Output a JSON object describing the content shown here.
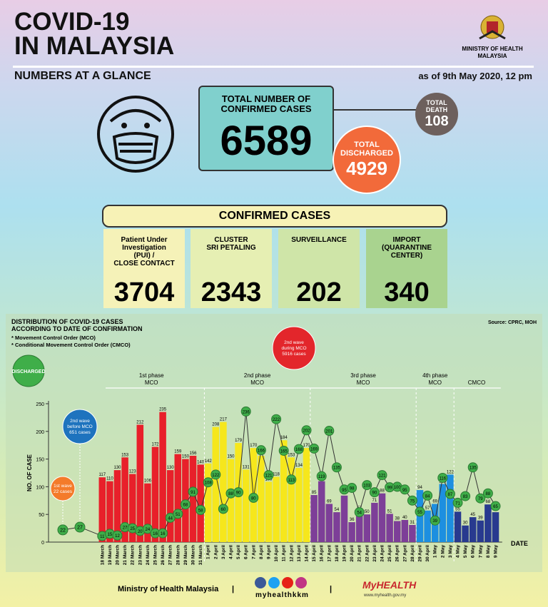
{
  "header": {
    "title": [
      "COVID-19",
      "IN MALAYSIA"
    ],
    "subtitle": "NUMBERS AT A GLANCE",
    "ministry": [
      "MINISTRY OF HEALTH",
      "MALAYSIA"
    ],
    "date": "as of 9th May 2020, 12 pm"
  },
  "totals": {
    "confirmed": {
      "label": [
        "TOTAL NUMBER OF",
        "CONFIRMED CASES"
      ],
      "value": 6589
    },
    "death": {
      "label": [
        "TOTAL",
        "DEATH"
      ],
      "value": 108
    },
    "discharged": {
      "label": [
        "TOTAL",
        "DISCHARGED"
      ],
      "value": 4929
    }
  },
  "breakdown": {
    "title": "CONFIRMED CASES",
    "items": [
      {
        "label": [
          "Patient Under",
          "Investigation",
          "(PUI) /",
          "CLOSE CONTACT"
        ],
        "value": 3704,
        "color": "#f5f2b8"
      },
      {
        "label": [
          "CLUSTER",
          "SRI PETALING"
        ],
        "value": 2343,
        "color": "#e6efb3"
      },
      {
        "label": [
          "SURVEILLANCE"
        ],
        "value": 202,
        "color": "#cfe5a8"
      },
      {
        "label": [
          "IMPORT",
          "(QUARANTINE",
          "CENTER)"
        ],
        "value": 340,
        "color": "#a9d38f"
      }
    ]
  },
  "chart_data": {
    "type": "bar-line",
    "title": [
      "DISTRIBUTION OF COVID-19 CASES",
      "ACCORDING TO DATE OF CONFIRMATION"
    ],
    "notes": [
      "* Movement Control Order (MCO)",
      "* Conditional Movement Control Order (CMCO)"
    ],
    "source": "Source: CPRC, MOH",
    "y_label": "NO. OF CASE",
    "x_label": "DATE",
    "categories": [
      "18 March",
      "19 March",
      "20 March",
      "21 March",
      "22 March",
      "23 March",
      "24 March",
      "25 March",
      "26 March",
      "27 March",
      "28 March",
      "29 March",
      "30 March",
      "31 March",
      "1 April",
      "2 April",
      "3 April",
      "4 April",
      "5 April",
      "6 April",
      "7 April",
      "8 April",
      "9 April",
      "10 April",
      "11 April",
      "12 April",
      "13 April",
      "14 April",
      "15 April",
      "16 April",
      "17 April",
      "18 April",
      "19 April",
      "20 April",
      "21 April",
      "22 April",
      "23 April",
      "24 April",
      "25 April",
      "26 April",
      "27 April",
      "28 April",
      "29 April",
      "30 April",
      "1 May",
      "2 May",
      "3 May",
      "4 May",
      "5 May",
      "6 May",
      "7 May",
      "8 May",
      "9 May"
    ],
    "series": [
      {
        "values": [
          117,
          110,
          130,
          153,
          123,
          212,
          106,
          172,
          235,
          130,
          159,
          150,
          156,
          140,
          142,
          208,
          217,
          150,
          179,
          131,
          170,
          156,
          109,
          118,
          184,
          153,
          134,
          170,
          85,
          110,
          69,
          54,
          84,
          36,
          57,
          50,
          71,
          88,
          51,
          38,
          40,
          31,
          94,
          57,
          69,
          105,
          122,
          55,
          30,
          45,
          39,
          68,
          54
        ]
      },
      {
        "name": "DISCHARGED",
        "color": "#3fae49",
        "values": [
          11,
          15,
          12,
          27,
          25,
          20,
          24,
          16,
          16,
          44,
          51,
          68,
          91,
          58,
          108,
          122,
          60,
          88,
          90,
          236,
          80,
          166,
          121,
          222,
          165,
          113,
          168,
          202,
          169,
          119,
          201,
          135,
          95,
          98,
          54,
          103,
          90,
          121,
          99,
          100,
          95,
          75,
          55,
          84,
          39,
          116,
          87,
          71,
          83,
          135,
          79,
          88,
          65
        ]
      }
    ],
    "phases": [
      {
        "name": [
          "1st phase",
          "MCO"
        ],
        "from": "18 March",
        "to": "31 March",
        "color": "#e8202a"
      },
      {
        "name": [
          "2nd phase",
          "MCO"
        ],
        "from": "1 April",
        "to": "14 April",
        "color": "#f6e71c"
      },
      {
        "name": [
          "3rd phase",
          "MCO"
        ],
        "from": "15 April",
        "to": "28 April",
        "color": "#7d3f98"
      },
      {
        "name": [
          "4th phase",
          "MCO"
        ],
        "from": "29 April",
        "to": "3 May",
        "color": "#1d8fe0"
      },
      {
        "name": [
          "CMCO"
        ],
        "from": "4 May",
        "to": "9 May",
        "color": "#283a8f"
      }
    ],
    "waves": [
      {
        "text": [
          "1st wave",
          "22 cases"
        ],
        "color": "#f47b2a",
        "discharged": 22
      },
      {
        "text": [
          "2nd wave",
          "before MCO",
          "651 cases"
        ],
        "color": "#1e73be",
        "discharged": 27
      },
      {
        "text": [
          "2nd wave",
          "during MCO",
          "5916 cases"
        ],
        "color": "#e3262b"
      }
    ],
    "ylim": [
      0,
      250
    ],
    "yticks": [
      0,
      50,
      100,
      150,
      200,
      250
    ]
  },
  "footer": {
    "ministry": "Ministry of Health Malaysia",
    "social": "myhealthkkm",
    "brand": "MyHEALTH",
    "url": "www.myhealth.gov.my"
  }
}
